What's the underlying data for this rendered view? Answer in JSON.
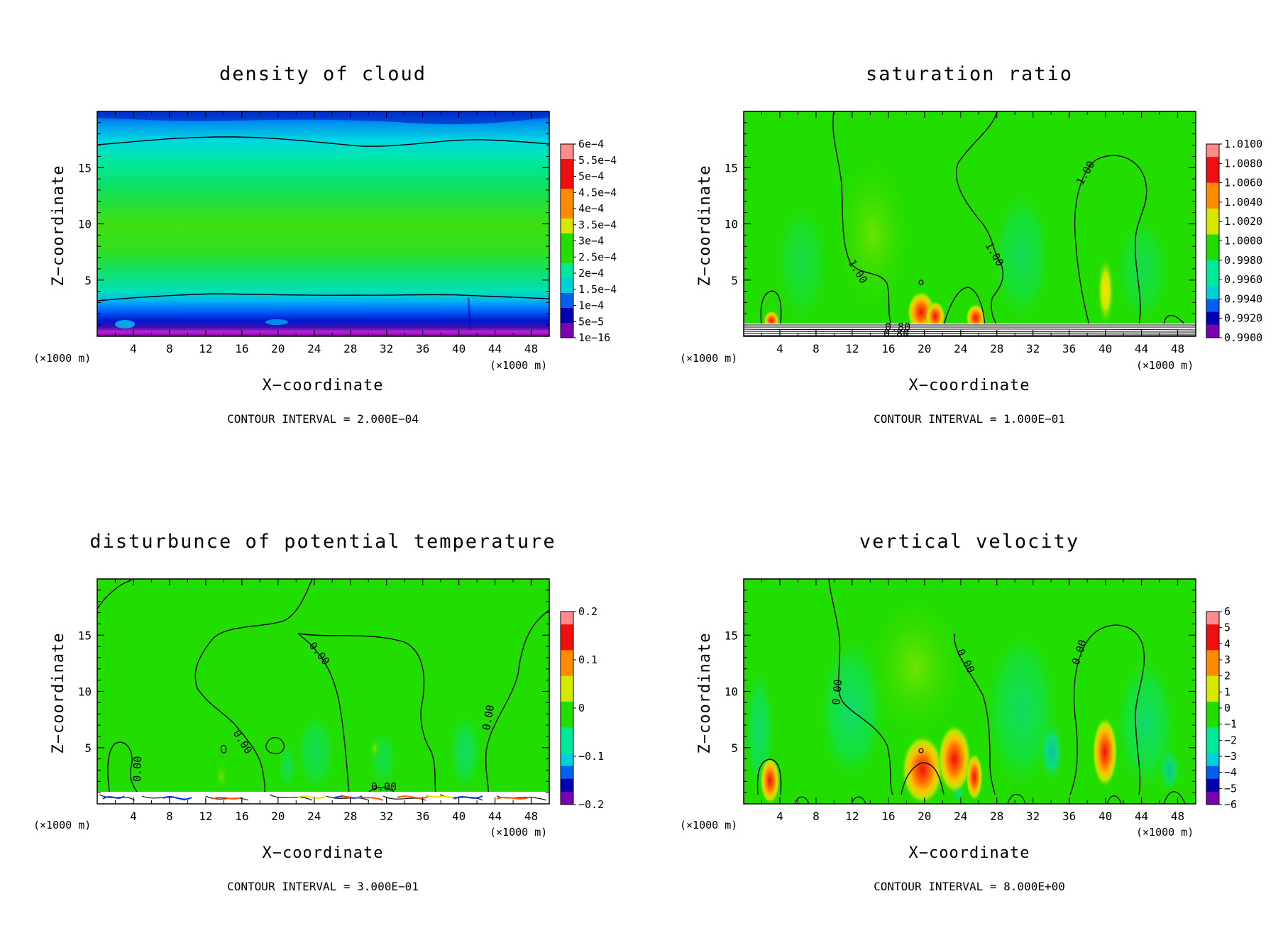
{
  "colors": {
    "background": "#ffffff",
    "frame": "#000000",
    "green": "#22dd00",
    "aqua": "#00e89a",
    "cyan": "#00d0d8",
    "blue": "#0050e8",
    "navy": "#0000b0",
    "purple": "#7a00b0",
    "yellow": "#d6e800",
    "orange": "#ff8c00",
    "red": "#ee1010",
    "pink": "#ff8080"
  },
  "chart_data": [
    {
      "type": "heatmap",
      "title": "density of cloud",
      "xlabel": "X−coordinate",
      "ylabel": "Z−coordinate",
      "x_ticks": [
        4,
        8,
        12,
        16,
        20,
        24,
        28,
        32,
        36,
        40,
        44,
        48
      ],
      "y_ticks": [
        5,
        10,
        15
      ],
      "xlim": [
        0,
        50
      ],
      "ylim": [
        0,
        20
      ],
      "x_unit": "(×1000 m)",
      "z_unit": "(×1000 m)",
      "contour_interval": "CONTOUR INTERVAL = 2.000E−04",
      "colorbar_labels": [
        "6e−4",
        "5.5e−4",
        "5e−4",
        "4.5e−4",
        "4e−4",
        "3.5e−4",
        "3e−4",
        "2.5e−4",
        "2e−4",
        "1.5e−4",
        "1e−4",
        "5e−5",
        "1e−16"
      ],
      "contour_labels": []
    },
    {
      "type": "heatmap",
      "title": "saturation ratio",
      "xlabel": "X−coordinate",
      "ylabel": "Z−coordinate",
      "x_ticks": [
        4,
        8,
        12,
        16,
        20,
        24,
        28,
        32,
        36,
        40,
        44,
        48
      ],
      "y_ticks": [
        5,
        10,
        15
      ],
      "xlim": [
        0,
        50
      ],
      "ylim": [
        0,
        20
      ],
      "x_unit": "(×1000 m)",
      "z_unit": "(×1000 m)",
      "contour_interval": "CONTOUR INTERVAL = 1.000E−01",
      "colorbar_labels": [
        "1.0100",
        "1.0080",
        "1.0060",
        "1.0040",
        "1.0020",
        "1.0000",
        "0.9980",
        "0.9960",
        "0.9940",
        "0.9920",
        "0.9900"
      ],
      "contour_labels": [
        "1.00",
        "1.00",
        "1.00",
        "0.80",
        "0.80"
      ]
    },
    {
      "type": "heatmap",
      "title": "disturbunce of potential temperature",
      "xlabel": "X−coordinate",
      "ylabel": "Z−coordinate",
      "x_ticks": [
        4,
        8,
        12,
        16,
        20,
        24,
        28,
        32,
        36,
        40,
        44,
        48
      ],
      "y_ticks": [
        5,
        10,
        15
      ],
      "xlim": [
        0,
        50
      ],
      "ylim": [
        0,
        20
      ],
      "x_unit": "(×1000 m)",
      "z_unit": "(×1000 m)",
      "contour_interval": "CONTOUR INTERVAL = 3.000E−01",
      "colorbar_labels": [
        "0.2",
        "0.1",
        "0",
        "−0.1",
        "−0.2"
      ],
      "contour_labels": [
        "0.00",
        "0.00",
        "0.00",
        "0.00",
        "0.00"
      ]
    },
    {
      "type": "heatmap",
      "title": "vertical velocity",
      "xlabel": "X−coordinate",
      "ylabel": "Z−coordinate",
      "x_ticks": [
        4,
        8,
        12,
        16,
        20,
        24,
        28,
        32,
        36,
        40,
        44,
        48
      ],
      "y_ticks": [
        5,
        10,
        15
      ],
      "xlim": [
        0,
        50
      ],
      "ylim": [
        0,
        20
      ],
      "x_unit": "(×1000 m)",
      "z_unit": "(×1000 m)",
      "contour_interval": "CONTOUR INTERVAL = 8.000E+00",
      "colorbar_labels": [
        "6",
        "5",
        "4",
        "3",
        "2",
        "1",
        "0",
        "−1",
        "−2",
        "−3",
        "−4",
        "−5",
        "−6"
      ],
      "contour_labels": [
        "0.00",
        "0.00",
        "0.00"
      ]
    }
  ]
}
